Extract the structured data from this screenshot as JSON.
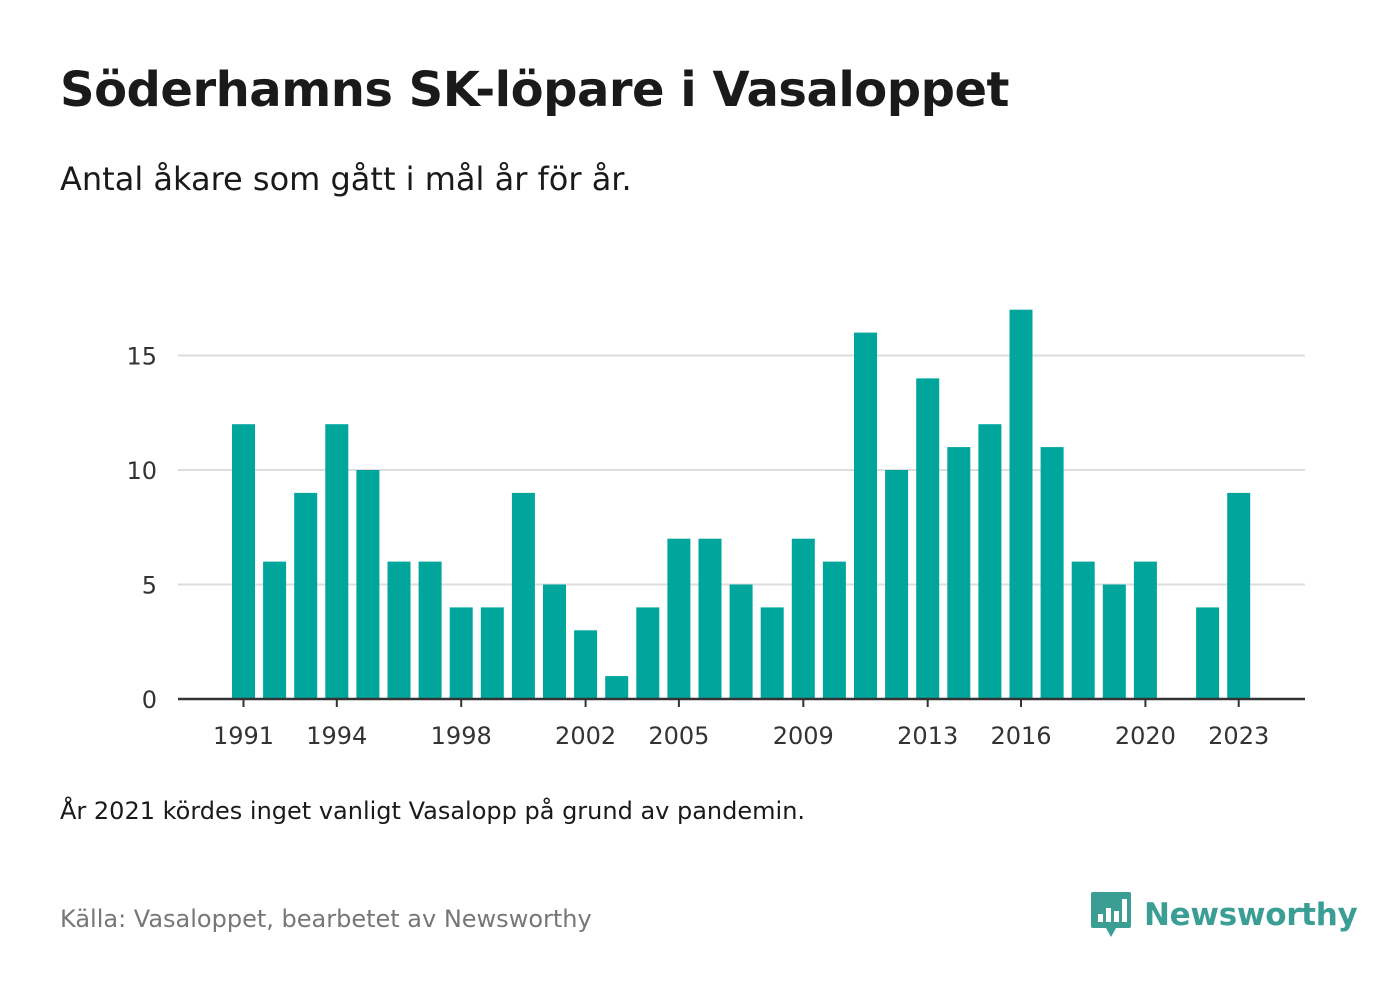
{
  "header": {
    "title": "Söderhamns SK-löpare i Vasaloppet",
    "subtitle": "Antal åkare som gått i mål år för år."
  },
  "footer": {
    "note": "År 2021 kördes inget vanligt Vasalopp på grund av pandemin.",
    "source": "Källa: Vasaloppet, bearbetet av Newsworthy",
    "brand": "Newsworthy"
  },
  "colors": {
    "bar": "#00a69c",
    "grid": "#dddddd",
    "axis": "#333333",
    "brand": "#3a9e95"
  },
  "icons": {
    "brand_logo": "newsworthy-bar-chart-speech-bubble-icon"
  },
  "chart_data": {
    "type": "bar",
    "categories": [
      1991,
      1992,
      1993,
      1994,
      1995,
      1996,
      1997,
      1998,
      1999,
      2000,
      2001,
      2002,
      2003,
      2004,
      2005,
      2006,
      2007,
      2008,
      2009,
      2010,
      2011,
      2012,
      2013,
      2014,
      2015,
      2016,
      2017,
      2018,
      2019,
      2020,
      2021,
      2022,
      2023
    ],
    "values": [
      12,
      6,
      9,
      12,
      10,
      6,
      6,
      4,
      4,
      9,
      5,
      3,
      1,
      4,
      7,
      7,
      5,
      4,
      7,
      6,
      16,
      10,
      14,
      11,
      12,
      17,
      11,
      6,
      5,
      6,
      0,
      4,
      9
    ],
    "x_tick_labels": [
      "1991",
      "1994",
      "1998",
      "2002",
      "2005",
      "2009",
      "2013",
      "2016",
      "2020",
      "2023"
    ],
    "y_ticks": [
      0,
      5,
      10,
      15
    ],
    "ylim": [
      0,
      17
    ],
    "grid": true,
    "legend": "none"
  }
}
